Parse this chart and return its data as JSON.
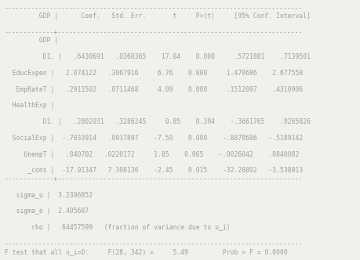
{
  "bg_color": "#f0f0ec",
  "text_color": "#a0a098",
  "font_family": "monospace",
  "font_size": 5.8,
  "lines": [
    "------------------------------------------------------------------------------",
    "         GDP |      Coef.   Std. Err.       t     P>|t|     [95% Conf. Interval]",
    "             |",
    "-------------+----------------------------------------------------------------",
    "         GDP |",
    "             |",
    "          D1. |   .6430691   .0360365    17.84    0.000     .5721881    .7139501",
    "             |",
    "  EducExpen |   2.074122   .3067916     6.76    0.000     1.470686    2.677558",
    "             |",
    "   EmpRateT |   .2911502   .0711468     4.09    0.000     .1512097    .4310906",
    "             |",
    "  HealthExp |",
    "             |",
    "          D1. |   .2802031   .3286245     0.85    0.394    -.3661765    .9265826",
    "             |",
    "  SocialExp |  -.7033914   .0937897    -7.50    0.000    -.8878686   -.5189142",
    "             |",
    "     UnempT |   .040702   .0220172     1.85    0.065    -.0026042    .0840082",
    "             |",
    "      _cons |  -17.91347   7.308136    -2.45    0.015    -32.28802   -3.538913",
    "-------------+----------------------------------------------------------------",
    "             |",
    "   sigma_u |  3.2396852",
    "             |",
    "   sigma_e |  2.405687",
    "             |",
    "       rho |  .64457599   (fraction of variance due to u_i)",
    "             |",
    "------------------------------------------------------------------------------",
    "F test that all u_i=0:     F(28, 342) =     5.49         Prob > F = 0.0000"
  ]
}
